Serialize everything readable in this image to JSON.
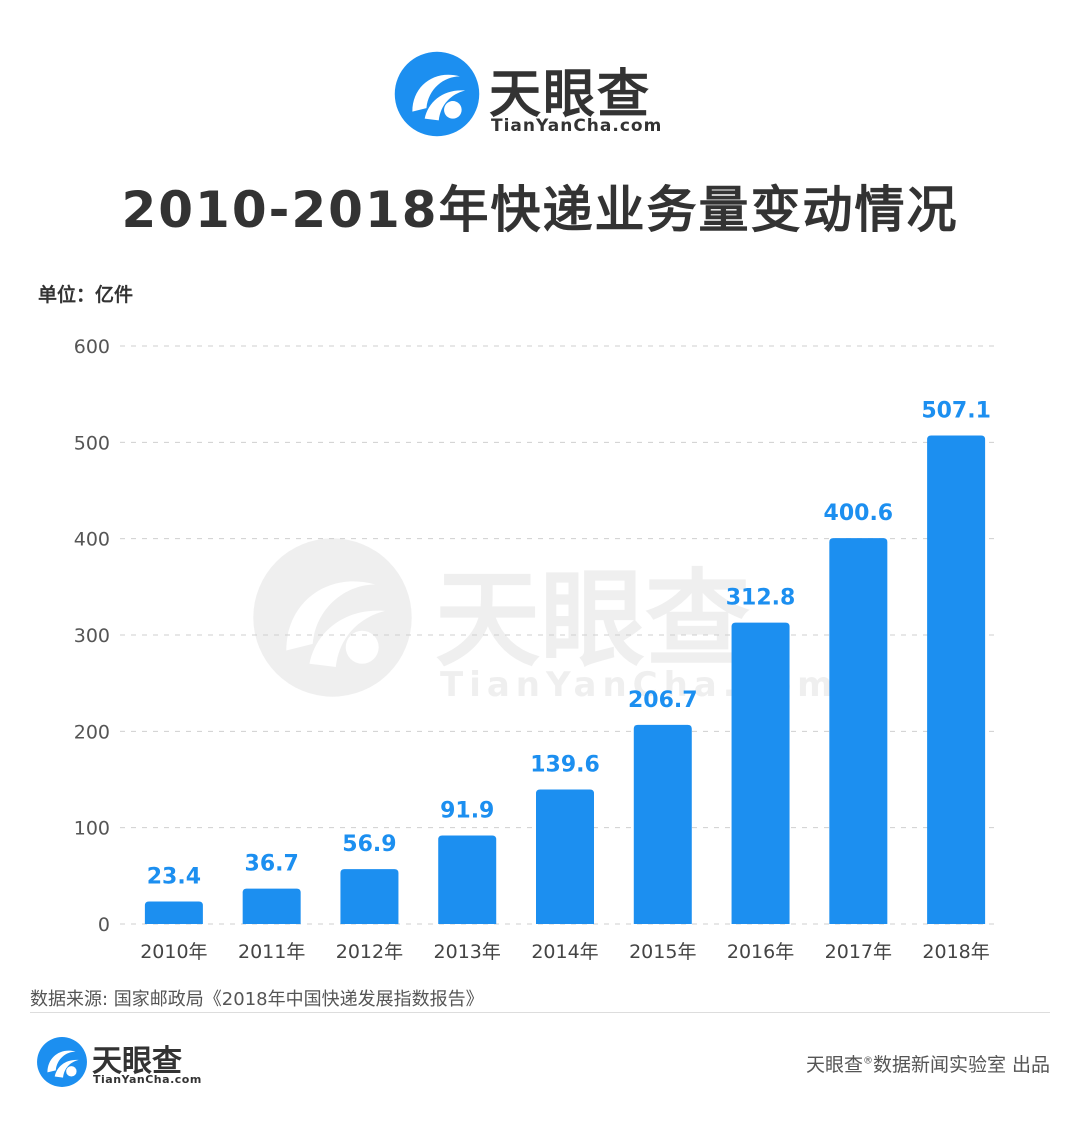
{
  "brand": {
    "name_cn": "天眼查",
    "name_en": "TianYanCha.com",
    "color": "#1c8ff0"
  },
  "title": "2010-2018年快递业务量变动情况",
  "unit_label": "单位：亿件",
  "source": "数据来源: 国家邮政局《2018年中国快递发展指数报告》",
  "footer": {
    "credit_prefix": "天眼查",
    "credit_mark": "®",
    "credit_suffix": "数据新闻实验室 出品"
  },
  "chart_data": {
    "type": "bar",
    "categories": [
      "2010年",
      "2011年",
      "2012年",
      "2013年",
      "2014年",
      "2015年",
      "2016年",
      "2017年",
      "2018年"
    ],
    "values": [
      23.4,
      36.7,
      56.9,
      91.9,
      139.6,
      206.7,
      312.8,
      400.6,
      507.1
    ],
    "value_labels": [
      "23.4",
      "36.7",
      "56.9",
      "91.9",
      "139.6",
      "206.7",
      "312.8",
      "400.6",
      "507.1"
    ],
    "yticks": [
      0,
      100,
      200,
      300,
      400,
      500,
      600
    ],
    "ylim": [
      0,
      600
    ],
    "bar_color": "#1c8ff0",
    "label_color": "#1c8ff0",
    "grid": "dashed"
  }
}
